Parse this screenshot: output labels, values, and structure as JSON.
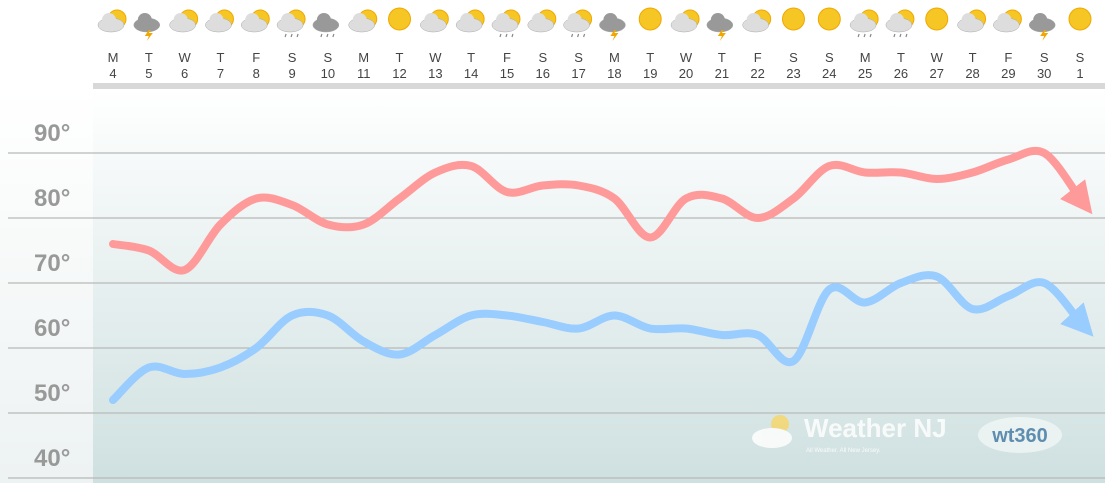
{
  "chart_data": {
    "type": "line",
    "weekdays": [
      "M",
      "T",
      "W",
      "T",
      "F",
      "S",
      "S",
      "M",
      "T",
      "W",
      "T",
      "F",
      "S",
      "S",
      "M",
      "T",
      "W",
      "T",
      "F",
      "S",
      "S",
      "M",
      "T",
      "W",
      "T",
      "F",
      "S",
      "S"
    ],
    "categories": [
      "4",
      "5",
      "6",
      "7",
      "8",
      "9",
      "10",
      "11",
      "12",
      "13",
      "14",
      "15",
      "16",
      "17",
      "18",
      "19",
      "20",
      "21",
      "22",
      "23",
      "24",
      "25",
      "26",
      "27",
      "28",
      "29",
      "30",
      "1"
    ],
    "series": [
      {
        "color": "#ff9a9a",
        "values": [
          76,
          75,
          72,
          79,
          83,
          82,
          79,
          79,
          83,
          87,
          88,
          84,
          85,
          85,
          83,
          77,
          83,
          83,
          80,
          83,
          88,
          87,
          87,
          86,
          87,
          89,
          90,
          83
        ]
      },
      {
        "color": "#99ccff",
        "values": [
          52,
          57,
          56,
          57,
          60,
          65,
          65,
          61,
          59,
          62,
          65,
          65,
          64,
          63,
          65,
          63,
          63,
          62,
          62,
          58,
          69,
          67,
          70,
          71,
          66,
          68,
          70,
          64
        ]
      }
    ],
    "ylim": [
      39,
      100
    ],
    "yticks": [
      {
        "value": 40,
        "label": "40°"
      },
      {
        "value": 50,
        "label": "50°"
      },
      {
        "value": 60,
        "label": "60°"
      },
      {
        "value": 70,
        "label": "70°"
      },
      {
        "value": 80,
        "label": "80°"
      },
      {
        "value": 90,
        "label": "90°"
      }
    ],
    "grid": true,
    "watermark": {
      "brand": "Weather NJ",
      "tagline": "All Weather. All New Jersey.",
      "partner": "wt360"
    }
  }
}
